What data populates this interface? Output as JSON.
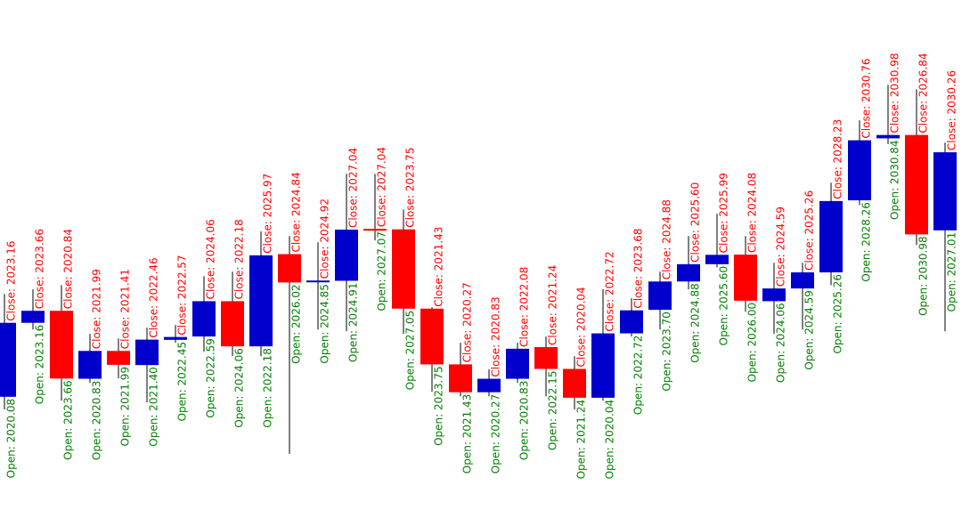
{
  "chart_data": {
    "type": "candlestick",
    "open": [
      2020.08,
      2023.16,
      2023.66,
      2020.83,
      2021.99,
      2021.4,
      2022.45,
      2022.59,
      2024.06,
      2022.18,
      2026.02,
      2024.85,
      2024.91,
      2027.07,
      2027.05,
      2023.75,
      2021.43,
      2020.27,
      2020.83,
      2022.15,
      2021.24,
      2020.04,
      2022.72,
      2023.7,
      2024.88,
      2025.6,
      2026.0,
      2024.06,
      2024.59,
      2025.26,
      2028.26,
      2030.84,
      2030.98,
      2027.01
    ],
    "high": [
      2024.36,
      2024.55,
      2024.73,
      2022.7,
      2022.51,
      2022.96,
      2023.07,
      2025.1,
      2025.29,
      2026.96,
      2026.77,
      2026.51,
      2029.36,
      2029.36,
      2027.88,
      2023.81,
      2022.33,
      2021.22,
      2022.33,
      2022.59,
      2021.77,
      2024.55,
      2024.18,
      2025.29,
      2026.77,
      2027.7,
      2026.77,
      2025.66,
      2025.66,
      2028.99,
      2031.59,
      2033.07,
      2032.88,
      2030.66
    ],
    "low": [
      2019.55,
      2022.88,
      2019.92,
      2020.66,
      2020.85,
      2019.85,
      2022.33,
      2021.96,
      2021.77,
      2021.77,
      2017.7,
      2022.88,
      2022.81,
      2026.59,
      2022.7,
      2020.29,
      2020.1,
      2020.1,
      2020.66,
      2020.1,
      2019.55,
      2019.92,
      2022.59,
      2022.88,
      2024.55,
      2025.47,
      2023.62,
      2022.7,
      2022.88,
      2024.73,
      2028.07,
      2030.6,
      2026.4,
      2022.81
    ],
    "close": [
      2023.16,
      2023.66,
      2020.84,
      2021.99,
      2021.41,
      2022.46,
      2022.57,
      2024.06,
      2022.18,
      2025.97,
      2024.84,
      2024.92,
      2027.04,
      2027.04,
      2023.75,
      2021.43,
      2020.27,
      2020.83,
      2022.08,
      2021.24,
      2020.04,
      2022.72,
      2023.68,
      2024.88,
      2025.6,
      2025.99,
      2024.08,
      2024.59,
      2025.26,
      2028.23,
      2030.76,
      2030.98,
      2026.84,
      2030.26
    ],
    "open_labels": [
      "Open: 2020.08",
      "Open: 2023.16",
      "Open: 2023.66",
      "Open: 2020.83",
      "Open: 2021.99",
      "Open: 2021.40",
      "Open: 2022.45",
      "Open: 2022.59",
      "Open: 2024.06",
      "Open: 2022.18",
      "Open: 2026.02",
      "Open: 2024.85",
      "Open: 2024.91",
      "Open: 2027.07",
      "Open: 2027.05",
      "Open: 2023.75",
      "Open: 2021.43",
      "Open: 2020.27",
      "Open: 2020.83",
      "Open: 2022.15",
      "Open: 2021.24",
      "Open: 2020.04",
      "Open: 2022.72",
      "Open: 2023.70",
      "Open: 2024.88",
      "Open: 2025.60",
      "Open: 2026.00",
      "Open: 2024.06",
      "Open: 2024.59",
      "Open: 2025.26",
      "Open: 2028.26",
      "Open: 2030.84",
      "Open: 2030.98",
      "Open: 2027.01"
    ],
    "close_labels": [
      "Close: 2023.16",
      "Close: 2023.66",
      "Close: 2020.84",
      "Close: 2021.99",
      "Close: 2021.41",
      "Close: 2022.46",
      "Close: 2022.57",
      "Close: 2024.06",
      "Close: 2022.18",
      "Close: 2025.97",
      "Close: 2024.84",
      "Close: 2024.92",
      "Close: 2027.04",
      "Close: 2027.04",
      "Close: 2023.75",
      "Close: 2021.43",
      "Close: 2020.27",
      "Close: 2020.83",
      "Close: 2022.08",
      "Close: 2021.24",
      "Close: 2020.04",
      "Close: 2022.72",
      "Close: 2023.68",
      "Close: 2024.88",
      "Close: 2025.60",
      "Close: 2025.99",
      "Close: 2024.08",
      "Close: 2024.59",
      "Close: 2025.26",
      "Close: 2028.23",
      "Close: 2030.76",
      "Close: 2030.98",
      "Close: 2026.84",
      "Close: 2030.26"
    ],
    "up_color": "#0000cc",
    "down_color": "#ff0000",
    "open_label_color": "#008000",
    "close_label_color": "#ff0000",
    "ylim": [
      2014.7,
      2036.6
    ]
  }
}
